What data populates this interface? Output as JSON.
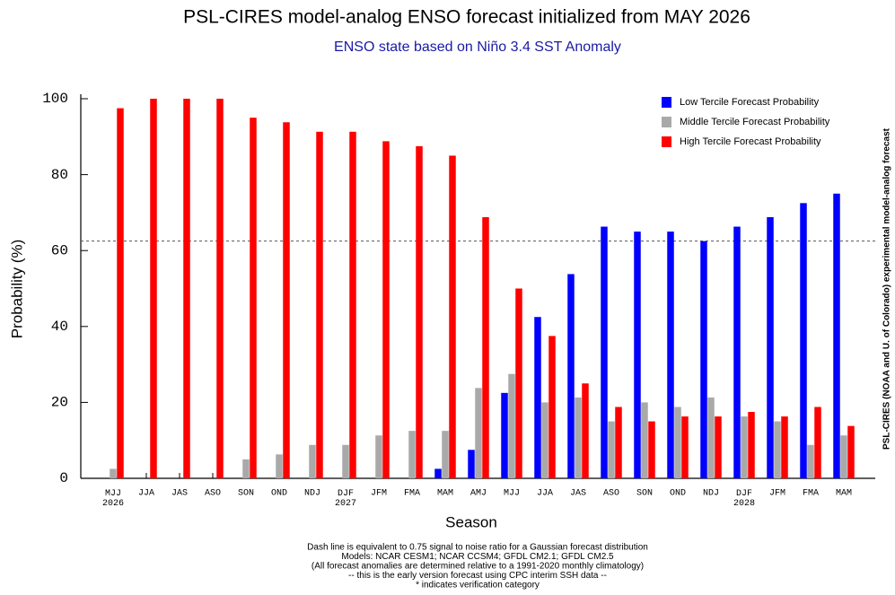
{
  "chart_data": {
    "type": "bar",
    "title": "PSL-CIRES model-analog ENSO forecast initialized from MAY 2026",
    "subtitle": "ENSO state based on Niño 3.4 SST Anomaly",
    "x_label": "Season",
    "y_label": "Probability (%)",
    "side_label": "PSL-CIRES (NOAA and U. of Colorado) experimental model-analog forecast",
    "categories": [
      "MJJ\n2026",
      "JJA",
      "JAS",
      "ASO",
      "SON",
      "OND",
      "NDJ",
      "DJF\n2027",
      "JFM",
      "FMA",
      "MAM",
      "AMJ",
      "MJJ",
      "JJA",
      "JAS",
      "ASO",
      "SON",
      "OND",
      "NDJ",
      "DJF\n2028",
      "JFM",
      "FMA",
      "MAM"
    ],
    "series": [
      {
        "name": "Low Tercile Forecast Probability",
        "color": "#0000ff",
        "values": [
          0,
          0,
          0,
          0,
          0,
          0,
          0,
          0,
          0,
          0,
          2.5,
          7.5,
          22.5,
          42.5,
          53.8,
          66.3,
          65,
          65,
          62.5,
          66.3,
          68.8,
          72.5,
          75
        ]
      },
      {
        "name": "Middle Tercile Forecast Probability",
        "color": "#a9a9a9",
        "values": [
          2.5,
          0,
          0,
          0,
          5,
          6.3,
          8.8,
          8.8,
          11.3,
          12.5,
          12.5,
          23.8,
          27.5,
          20,
          21.3,
          15,
          20,
          18.8,
          21.3,
          16.3,
          15,
          8.8,
          11.3
        ]
      },
      {
        "name": "High Tercile Forecast Probability",
        "color": "#ff0000",
        "values": [
          97.5,
          100,
          100,
          100,
          95,
          93.8,
          91.3,
          91.3,
          88.8,
          87.5,
          85,
          68.8,
          50,
          37.5,
          25,
          18.8,
          15,
          16.3,
          16.3,
          17.5,
          16.3,
          18.8,
          13.8
        ]
      }
    ],
    "reference_line": 62.5,
    "ylim": [
      0,
      100
    ],
    "yticks": [
      0,
      20,
      40,
      60,
      80,
      100
    ],
    "legend": "upper right",
    "notes": [
      "Dash line is equivalent to 0.75 signal to noise ratio for a Gaussian forecast distribution",
      "Models: NCAR CESM1; NCAR CCSM4; GFDL CM2.1; GFDL CM2.5",
      "(All forecast anomalies are determined relative to a 1991-2020 monthly climatology)",
      "-- this is the early version forecast using CPC interim SSH data --",
      "* indicates verification category"
    ]
  }
}
